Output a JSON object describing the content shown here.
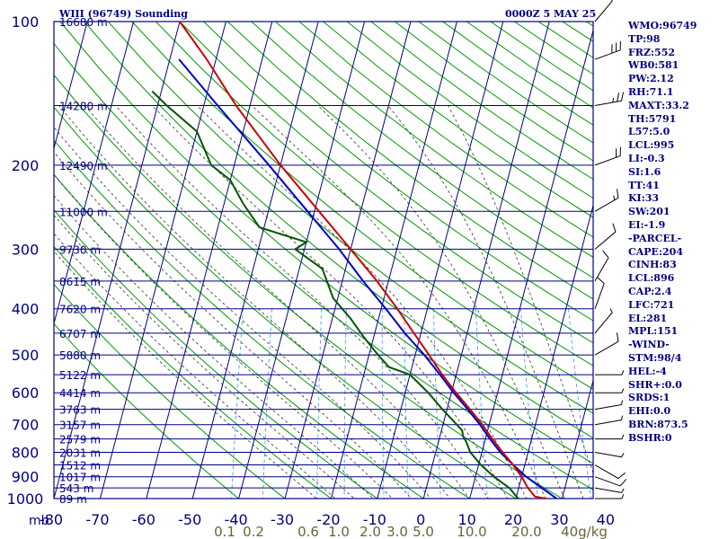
{
  "header": {
    "station": "WIII (96749) Sounding",
    "timestamp": "0000Z  5 MAY 25"
  },
  "indices": [
    "WMO:96749",
    "TP:98",
    "FRZ:552",
    "WB0:581",
    "PW:2.12",
    "RH:71.1",
    "MAXT:33.2",
    "TH:5791",
    "L57:5.0",
    "LCL:995",
    "LI:-0.3",
    "SI:1.6",
    "TT:41",
    "KI:33",
    "SW:201",
    "EI:-1.9",
    "-PARCEL-",
    "CAPE:204",
    "CINH:83",
    "LCL:896",
    "CAP:2.4",
    "LFC:721",
    "EL:281",
    "MPL:151",
    "-WIND-",
    "STM:98/4",
    "HEL:-4",
    "SHR+:0.0",
    "SRDS:1",
    "EHI:0.0",
    "BRN:873.5",
    "BSHR:0"
  ],
  "colors": {
    "isobars": "#000080",
    "isotherms": "#000080",
    "dry_adiabats": "#009900",
    "moist_adiabats": "#333333",
    "mixing_ratio": "#3399ff",
    "temperature": "#cc0000",
    "dewpoint": "#005500",
    "parcel": "#0000cc",
    "wind_barbs": "#000000"
  },
  "chart_data": {
    "type": "skew-t sounding",
    "pressure_axis": {
      "unit": "mb",
      "labels": [
        "100",
        "200",
        "300",
        "400",
        "500",
        "600",
        "700",
        "800",
        "900",
        "1000"
      ]
    },
    "temperature_axis": {
      "unit_label": "mb",
      "labels": [
        "-80",
        "-70",
        "-60",
        "-50",
        "-40",
        "-30",
        "-20",
        "-10",
        "0",
        "10",
        "20",
        "30",
        "40"
      ]
    },
    "mixing_ratio_labels": [
      "0.1",
      "0.2",
      "0.6",
      "1.0",
      "2.0",
      "3.0",
      "5.0",
      "10.0",
      "20.0",
      "40g/kg"
    ],
    "height_labels": [
      {
        "p": 100,
        "h": "16680 m"
      },
      {
        "p": 150,
        "h": "14280 m"
      },
      {
        "p": 200,
        "h": "12490 m"
      },
      {
        "p": 250,
        "h": "11000 m"
      },
      {
        "p": 300,
        "h": "9730 m"
      },
      {
        "p": 350,
        "h": "8615 m"
      },
      {
        "p": 400,
        "h": "7620 m"
      },
      {
        "p": 450,
        "h": "6707 m"
      },
      {
        "p": 500,
        "h": "5880 m"
      },
      {
        "p": 550,
        "h": "5122 m"
      },
      {
        "p": 600,
        "h": "4414 m"
      },
      {
        "p": 650,
        "h": "3763 m"
      },
      {
        "p": 700,
        "h": "3157 m"
      },
      {
        "p": 750,
        "h": "2579 m"
      },
      {
        "p": 800,
        "h": "2031 m"
      },
      {
        "p": 850,
        "h": "1512 m"
      },
      {
        "p": 900,
        "h": "1017 m"
      },
      {
        "p": 950,
        "h": "543 m"
      },
      {
        "p": 1000,
        "h": "89 m"
      }
    ],
    "temperature_profile": [
      {
        "p": 1009,
        "t": 26.0
      },
      {
        "p": 1000,
        "t": 26.5
      },
      {
        "p": 990,
        "t": 24.0
      },
      {
        "p": 950,
        "t": 22.0
      },
      {
        "p": 900,
        "t": 20.0
      },
      {
        "p": 850,
        "t": 17.5
      },
      {
        "p": 800,
        "t": 14.5
      },
      {
        "p": 750,
        "t": 11.5
      },
      {
        "p": 700,
        "t": 8.5
      },
      {
        "p": 650,
        "t": 5.0
      },
      {
        "p": 600,
        "t": 1.0
      },
      {
        "p": 550,
        "t": -3.0
      },
      {
        "p": 500,
        "t": -7.0
      },
      {
        "p": 450,
        "t": -11.5
      },
      {
        "p": 400,
        "t": -16.5
      },
      {
        "p": 350,
        "t": -22.5
      },
      {
        "p": 300,
        "t": -30.0
      },
      {
        "p": 250,
        "t": -39.0
      },
      {
        "p": 200,
        "t": -50.0
      },
      {
        "p": 150,
        "t": -63.0
      },
      {
        "p": 120,
        "t": -72.0
      },
      {
        "p": 100,
        "t": -80.0
      }
    ],
    "dewpoint_profile": [
      {
        "p": 1009,
        "td": 23.0
      },
      {
        "p": 1000,
        "td": 20.5
      },
      {
        "p": 950,
        "td": 18.0
      },
      {
        "p": 900,
        "td": 14.0
      },
      {
        "p": 850,
        "td": 10.5
      },
      {
        "p": 800,
        "td": 7.5
      },
      {
        "p": 760,
        "td": 6.0
      },
      {
        "p": 740,
        "td": 5.0
      },
      {
        "p": 720,
        "td": 4.5
      },
      {
        "p": 700,
        "td": 3.0
      },
      {
        "p": 650,
        "td": -1.0
      },
      {
        "p": 600,
        "td": -5.0
      },
      {
        "p": 550,
        "td": -10.0
      },
      {
        "p": 530,
        "td": -15.0
      },
      {
        "p": 510,
        "td": -17.0
      },
      {
        "p": 490,
        "td": -19.0
      },
      {
        "p": 460,
        "td": -22.0
      },
      {
        "p": 420,
        "td": -26.0
      },
      {
        "p": 380,
        "td": -31.0
      },
      {
        "p": 330,
        "td": -35.0
      },
      {
        "p": 300,
        "td": -42.0
      },
      {
        "p": 290,
        "td": -40.0
      },
      {
        "p": 270,
        "td": -51.0
      },
      {
        "p": 240,
        "td": -56.0
      },
      {
        "p": 215,
        "td": -60.0
      },
      {
        "p": 200,
        "td": -65.0
      },
      {
        "p": 170,
        "td": -70.0
      },
      {
        "p": 150,
        "td": -78.0
      },
      {
        "p": 140,
        "td": -82.0
      }
    ],
    "parcel_profile": [
      {
        "p": 1009,
        "t": 29.5
      },
      {
        "p": 950,
        "t": 25.0
      },
      {
        "p": 900,
        "t": 21.0
      },
      {
        "p": 850,
        "t": 17.5
      },
      {
        "p": 800,
        "t": 14.0
      },
      {
        "p": 750,
        "t": 11.0
      },
      {
        "p": 700,
        "t": 8.0
      },
      {
        "p": 650,
        "t": 4.5
      },
      {
        "p": 600,
        "t": 0.5
      },
      {
        "p": 550,
        "t": -3.5
      },
      {
        "p": 500,
        "t": -8.0
      },
      {
        "p": 450,
        "t": -13.5
      },
      {
        "p": 400,
        "t": -19.0
      },
      {
        "p": 350,
        "t": -25.5
      },
      {
        "p": 300,
        "t": -32.5
      },
      {
        "p": 250,
        "t": -41.5
      },
      {
        "p": 200,
        "t": -52.5
      },
      {
        "p": 150,
        "t": -67.0
      },
      {
        "p": 120,
        "t": -78.0
      }
    ],
    "winds": [
      {
        "p": 1000,
        "dir": 90,
        "spd": 5
      },
      {
        "p": 950,
        "dir": 100,
        "spd": 5
      },
      {
        "p": 900,
        "dir": 110,
        "spd": 10
      },
      {
        "p": 850,
        "dir": 120,
        "spd": 10
      },
      {
        "p": 800,
        "dir": 100,
        "spd": 5
      },
      {
        "p": 750,
        "dir": 90,
        "spd": 5
      },
      {
        "p": 700,
        "dir": 80,
        "spd": 5
      },
      {
        "p": 650,
        "dir": 80,
        "spd": 5
      },
      {
        "p": 600,
        "dir": 90,
        "spd": 5
      },
      {
        "p": 550,
        "dir": 90,
        "spd": 5
      },
      {
        "p": 500,
        "dir": 60,
        "spd": 10
      },
      {
        "p": 450,
        "dir": 40,
        "spd": 5
      },
      {
        "p": 400,
        "dir": 20,
        "spd": 10
      },
      {
        "p": 350,
        "dir": 30,
        "spd": 10
      },
      {
        "p": 300,
        "dir": 50,
        "spd": 10
      },
      {
        "p": 250,
        "dir": 60,
        "spd": 15
      },
      {
        "p": 200,
        "dir": 70,
        "spd": 20
      },
      {
        "p": 150,
        "dir": 80,
        "spd": 25
      },
      {
        "p": 120,
        "dir": 70,
        "spd": 30
      },
      {
        "p": 100,
        "dir": 40,
        "spd": 10
      }
    ]
  }
}
